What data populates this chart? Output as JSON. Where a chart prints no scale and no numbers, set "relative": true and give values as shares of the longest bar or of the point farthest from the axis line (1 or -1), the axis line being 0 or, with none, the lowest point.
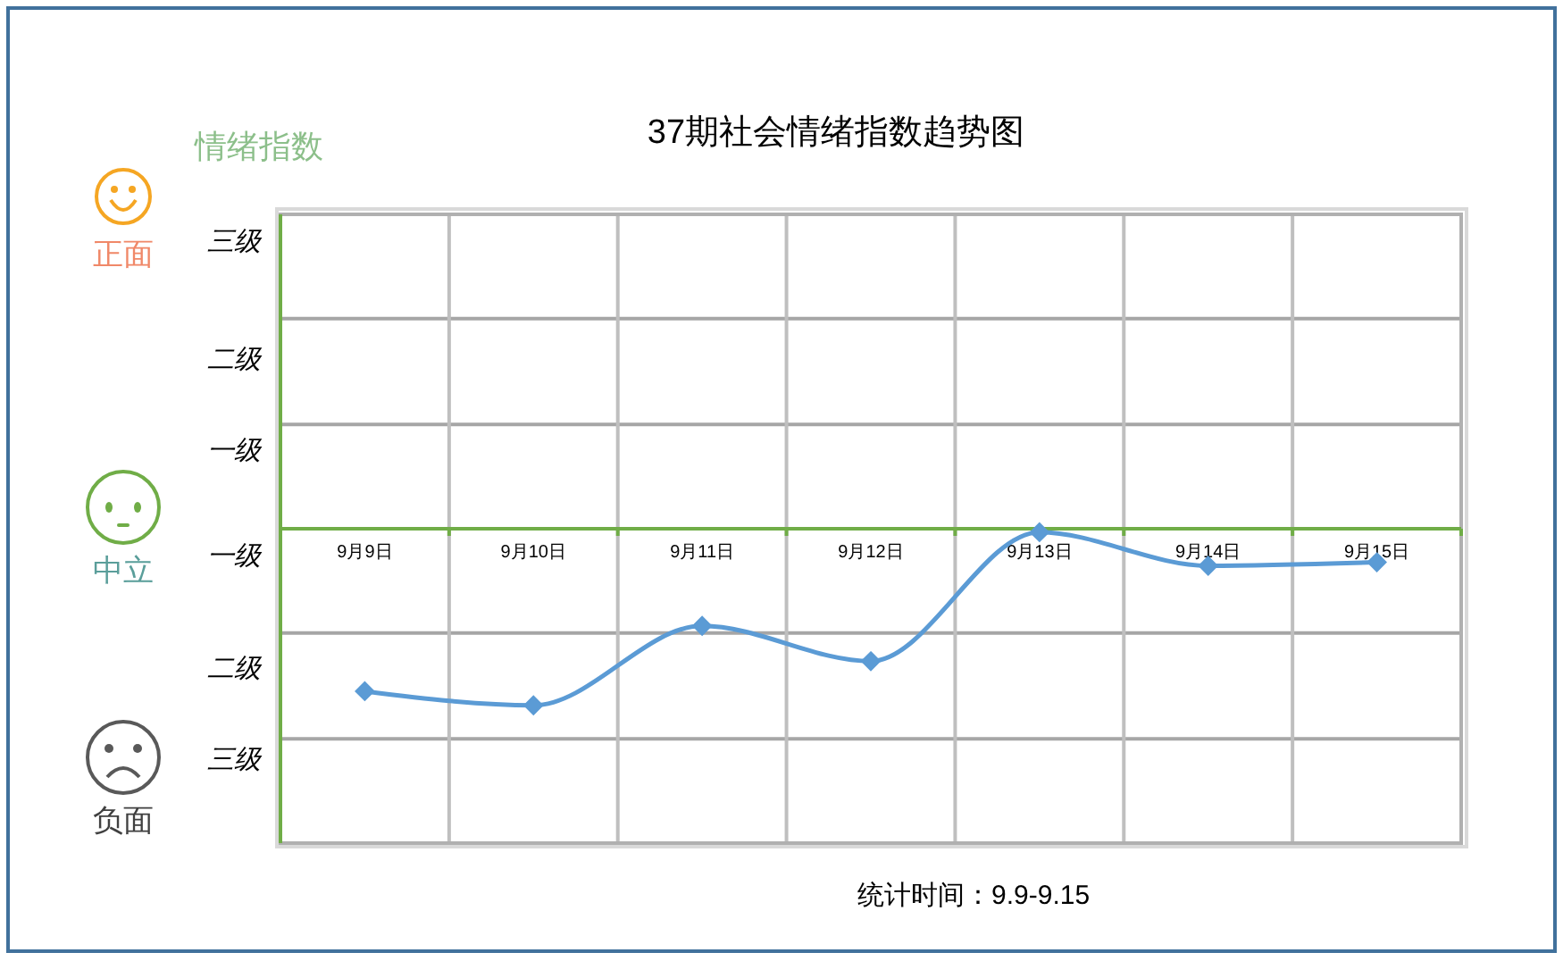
{
  "chart_data": {
    "type": "line",
    "title": "37期社会情绪指数趋势图",
    "categories": [
      "9月9日",
      "9月10日",
      "9月11日",
      "9月12日",
      "9月13日",
      "9月14日",
      "9月15日"
    ],
    "series": [
      {
        "color": "#5b9bd5",
        "values": [
          -0.92,
          -1,
          -0.55,
          -0.75,
          -0.02,
          -0.21,
          -0.19
        ]
      }
    ],
    "relative": true,
    "grid": "x",
    "marker": "diamond",
    "line_style": "solid",
    "ref_lines": [
      {
        "axis": "y",
        "value": 1.19,
        "color": "#a6a6a6"
      },
      {
        "axis": "y",
        "value": 0.59,
        "color": "#a6a6a6"
      },
      {
        "axis": "y",
        "value": -0.59,
        "color": "#a6a6a6"
      },
      {
        "axis": "y",
        "value": -1.19,
        "color": "#a6a6a6"
      }
    ],
    "annotations": [
      "情绪指数",
      "正面",
      "中立",
      "负面",
      "三级",
      "二级",
      "一级",
      "一级",
      "二级",
      "三级",
      "统计时间：9.9-9.15"
    ]
  }
}
